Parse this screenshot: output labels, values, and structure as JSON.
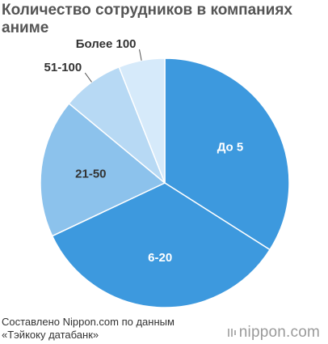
{
  "chart_data": {
    "type": "pie",
    "title": "Количество сотрудников в компаниях аниме",
    "categories": [
      "До 5",
      "6-20",
      "21-50",
      "51-100",
      "Более 100"
    ],
    "values": [
      34,
      34,
      18,
      8,
      6
    ],
    "colors": [
      "#3d99de",
      "#3d99de",
      "#8cc2ec",
      "#b7d9f4",
      "#d6eafa"
    ],
    "label_placement": [
      "inside",
      "inside",
      "inside",
      "outside",
      "outside"
    ]
  },
  "footer": {
    "source_line1": "Составлено Nippon.com по данным",
    "source_line2": "«Тэйкоку датабанк»",
    "brand": "nippon.com"
  }
}
